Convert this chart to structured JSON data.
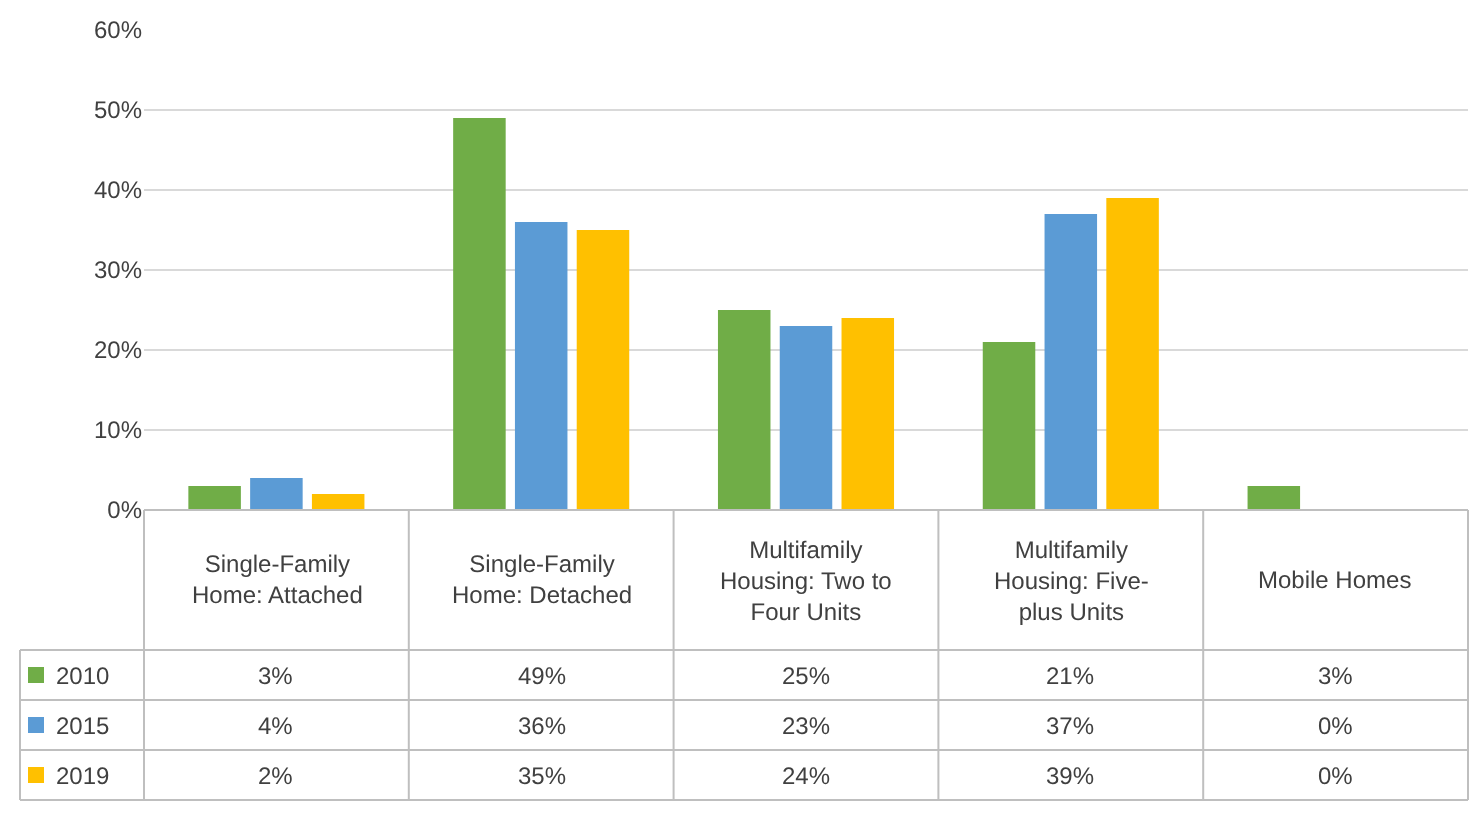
{
  "chart_data": {
    "type": "bar",
    "categories": [
      "Single-Family Home: Attached",
      "Single-Family Home: Detached",
      "Multifamily Housing: Two to Four Units",
      "Multifamily Housing: Five-plus Units",
      "Mobile Homes"
    ],
    "series": [
      {
        "name": "2010",
        "color": "#70ad47",
        "values": [
          3,
          49,
          25,
          21,
          3
        ],
        "value_labels": [
          "3%",
          "49%",
          "25%",
          "21%",
          "3%"
        ]
      },
      {
        "name": "2015",
        "color": "#5b9bd5",
        "values": [
          4,
          36,
          23,
          37,
          0
        ],
        "value_labels": [
          "4%",
          "36%",
          "23%",
          "37%",
          "0%"
        ]
      },
      {
        "name": "2019",
        "color": "#ffc000",
        "values": [
          2,
          35,
          24,
          39,
          0
        ],
        "value_labels": [
          "2%",
          "35%",
          "24%",
          "39%",
          "0%"
        ]
      }
    ],
    "ylim": [
      0,
      60
    ],
    "yticks": [
      {
        "value": 0,
        "label": "0%"
      },
      {
        "value": 10,
        "label": "10%"
      },
      {
        "value": 20,
        "label": "20%"
      },
      {
        "value": 30,
        "label": "30%"
      },
      {
        "value": 40,
        "label": "40%"
      },
      {
        "value": 50,
        "label": "50%"
      },
      {
        "value": 60,
        "label": "60%"
      }
    ],
    "grid": "y",
    "legend": "bottom left"
  }
}
